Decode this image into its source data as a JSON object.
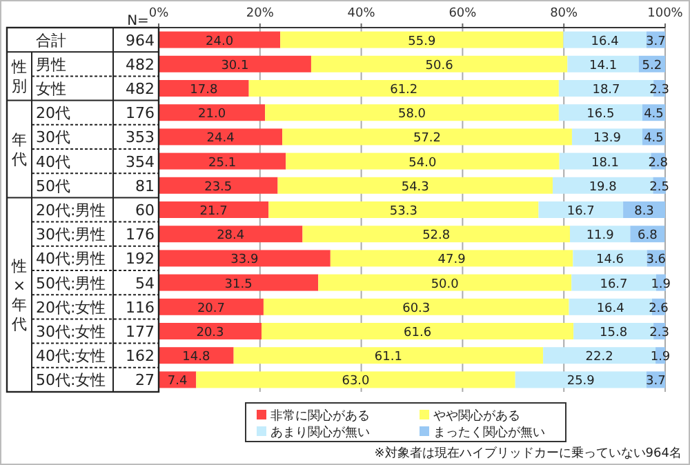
{
  "chart_data": {
    "type": "bar",
    "orientation": "horizontal",
    "stacked": true,
    "categories": [
      "合計",
      "男性",
      "女性",
      "20代",
      "30代",
      "40代",
      "50代",
      "20代:男性",
      "30代:男性",
      "40代:男性",
      "50代:男性",
      "20代:女性",
      "30代:女性",
      "40代:女性",
      "50代:女性"
    ],
    "series": [
      {
        "name": "非常に関心がある",
        "color": "#ff4444",
        "values": [
          24.0,
          30.1,
          17.8,
          21.0,
          24.4,
          25.1,
          23.5,
          21.7,
          28.4,
          33.9,
          31.5,
          20.7,
          20.3,
          14.8,
          7.4
        ],
        "value_labels": [
          "24.0",
          "30.1",
          "17.8",
          "21.0",
          "24.4",
          "25.1",
          "23.5",
          "21.7",
          "28.4",
          "33.9",
          "31.5",
          "20.7",
          "20.3",
          "14.8",
          "7.4"
        ]
      },
      {
        "name": "やや関心がある",
        "color": "#ffff66",
        "values": [
          55.9,
          50.6,
          61.2,
          58.0,
          57.2,
          54.0,
          54.3,
          53.3,
          52.8,
          47.9,
          50.0,
          60.3,
          61.6,
          61.1,
          63.0
        ],
        "value_labels": [
          "55.9",
          "50.6",
          "61.2",
          "58.0",
          "57.2",
          "54.0",
          "54.3",
          "53.3",
          "52.8",
          "47.9",
          "50.0",
          "60.3",
          "61.6",
          "61.1",
          "63.0"
        ]
      },
      {
        "name": "あまり関心が無い",
        "color": "#c4ecfc",
        "values": [
          16.4,
          14.1,
          18.7,
          16.5,
          13.9,
          18.1,
          19.8,
          16.7,
          11.9,
          14.6,
          16.7,
          16.4,
          15.8,
          22.2,
          25.9
        ],
        "value_labels": [
          "16.4",
          "14.1",
          "18.7",
          "16.5",
          "13.9",
          "18.1",
          "19.8",
          "16.7",
          "11.9",
          "14.6",
          "16.7",
          "16.4",
          "15.8",
          "22.2",
          "25.9"
        ]
      },
      {
        "name": "まったく関心が無い",
        "color": "#99c8f4",
        "values": [
          3.7,
          5.2,
          2.3,
          4.5,
          4.5,
          2.8,
          2.5,
          8.3,
          6.8,
          3.6,
          1.9,
          2.6,
          2.3,
          1.9,
          3.7
        ],
        "value_labels": [
          "3.7",
          "5.2",
          "2.3",
          "4.5",
          "4.5",
          "2.8",
          "2.5",
          "8.3",
          "6.8",
          "3.6",
          "1.9",
          "2.6",
          "2.3",
          "1.9",
          "3.7"
        ]
      }
    ],
    "xlim": [
      0,
      100
    ],
    "xticks": [
      {
        "value": 0,
        "label": "0%"
      },
      {
        "value": 20,
        "label": "20%"
      },
      {
        "value": 40,
        "label": "40%"
      },
      {
        "value": 60,
        "label": "60%"
      },
      {
        "value": 80,
        "label": "80%"
      },
      {
        "value": 100,
        "label": "100%"
      }
    ],
    "grid": "x",
    "legend": "bottom",
    "annotations": [
      "N=",
      "性別",
      "年代",
      "性×年代",
      "964",
      "482",
      "482",
      "176",
      "353",
      "354",
      "81",
      "60",
      "176",
      "192",
      "54",
      "116",
      "177",
      "162",
      "27",
      "※対象者は現在ハイブリッドカーに乗っていない964名"
    ]
  }
}
